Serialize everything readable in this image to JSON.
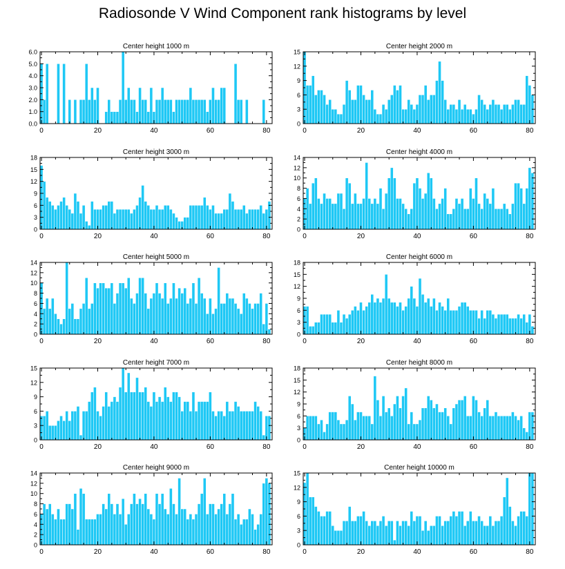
{
  "title": "Radiosonde V Wind Component rank histograms by level",
  "style": {
    "bar_color": "#1ec8f5",
    "bar_edge": "#ffffff",
    "axis_color": "#000000",
    "background": "#ffffff"
  },
  "chart_data": [
    {
      "type": "bar",
      "title": "Center height 1000 m",
      "xlim": [
        -0.5,
        82
      ],
      "ylim": [
        0,
        6
      ],
      "xticks": [
        0,
        20,
        40,
        60,
        80
      ],
      "xtick_labels": [
        "0",
        "20",
        "40",
        "60",
        "80"
      ],
      "yticks": [
        0,
        1,
        2,
        3,
        4,
        5,
        6
      ],
      "ytick_labels": [
        "0.0",
        "1.0",
        "2.0",
        "3.0",
        "4.0",
        "5.0",
        "6.0"
      ],
      "values": [
        5,
        2,
        5,
        0,
        0,
        0,
        5,
        0,
        5,
        0,
        2,
        0,
        2,
        0,
        2,
        2,
        5,
        2,
        3,
        2,
        3,
        0,
        0,
        1,
        2,
        1,
        1,
        1,
        2,
        6,
        2,
        3,
        2,
        2,
        1,
        3,
        2,
        2,
        1,
        3,
        1,
        2,
        2,
        3,
        2,
        2,
        2,
        1,
        2,
        2,
        2,
        2,
        2,
        3,
        2,
        2,
        2,
        2,
        2,
        1,
        2,
        3,
        2,
        2,
        3,
        3,
        0,
        0,
        0,
        5,
        2,
        2,
        0,
        2,
        0,
        0,
        0,
        0,
        0,
        2,
        0,
        0
      ]
    },
    {
      "type": "bar",
      "title": "Center height 2000 m",
      "xlim": [
        -0.5,
        82
      ],
      "ylim": [
        0,
        15
      ],
      "xticks": [
        0,
        20,
        40,
        60,
        80
      ],
      "xtick_labels": [
        "0",
        "20",
        "40",
        "60",
        "80"
      ],
      "yticks": [
        0,
        3,
        6,
        9,
        12,
        15
      ],
      "ytick_labels": [
        "0",
        "3",
        "6",
        "9",
        "12",
        "15"
      ],
      "values": [
        15,
        8,
        8,
        10,
        6,
        7,
        7,
        6,
        4,
        5,
        3,
        3,
        2,
        2,
        4,
        9,
        7,
        5,
        5,
        8,
        8,
        6,
        5,
        5,
        7,
        3,
        2,
        2,
        4,
        3,
        5,
        6,
        8,
        7,
        8,
        3,
        3,
        5,
        4,
        3,
        4,
        6,
        6,
        8,
        5,
        6,
        6,
        9,
        13,
        9,
        5,
        3,
        4,
        4,
        3,
        5,
        3,
        4,
        3,
        3,
        2,
        3,
        6,
        5,
        4,
        3,
        4,
        5,
        4,
        4,
        3,
        4,
        4,
        3,
        4,
        5,
        5,
        4,
        4,
        10,
        8,
        6
      ]
    },
    {
      "type": "bar",
      "title": "Center height 3000 m",
      "xlim": [
        -0.5,
        82
      ],
      "ylim": [
        0,
        18
      ],
      "xticks": [
        0,
        20,
        40,
        60,
        80
      ],
      "xtick_labels": [
        "0",
        "20",
        "40",
        "60",
        "80"
      ],
      "yticks": [
        0,
        3,
        6,
        9,
        12,
        15,
        18
      ],
      "ytick_labels": [
        "0",
        "3",
        "6",
        "9",
        "12",
        "15",
        "18"
      ],
      "values": [
        16,
        12,
        8,
        7,
        6,
        5,
        6,
        7,
        8,
        6,
        5,
        4,
        9,
        7,
        4,
        6,
        2,
        1,
        7,
        5,
        5,
        5,
        6,
        6,
        7,
        7,
        4,
        5,
        5,
        5,
        5,
        5,
        4,
        5,
        6,
        8,
        11,
        7,
        6,
        5,
        5,
        6,
        5,
        5,
        6,
        6,
        5,
        4,
        3,
        2,
        2,
        3,
        3,
        6,
        6,
        6,
        6,
        6,
        8,
        6,
        5,
        6,
        4,
        4,
        4,
        5,
        5,
        9,
        7,
        5,
        5,
        5,
        6,
        4,
        5,
        5,
        5,
        5,
        6,
        4,
        5,
        7
      ]
    },
    {
      "type": "bar",
      "title": "Center height 4000 m",
      "xlim": [
        -0.5,
        82
      ],
      "ylim": [
        0,
        14
      ],
      "xticks": [
        0,
        20,
        40,
        60,
        80
      ],
      "xtick_labels": [
        "0",
        "20",
        "40",
        "60",
        "80"
      ],
      "yticks": [
        0,
        2,
        4,
        6,
        8,
        10,
        12,
        14
      ],
      "ytick_labels": [
        "0",
        "2",
        "4",
        "6",
        "8",
        "10",
        "12",
        "14"
      ],
      "values": [
        6,
        8,
        5,
        9,
        10,
        6,
        5,
        7,
        6,
        6,
        5,
        5,
        7,
        7,
        4,
        10,
        9,
        5,
        7,
        5,
        5,
        6,
        13,
        6,
        5,
        6,
        5,
        8,
        4,
        7,
        10,
        12,
        10,
        6,
        6,
        5,
        4,
        3,
        4,
        9,
        10,
        8,
        6,
        7,
        11,
        10,
        6,
        4,
        5,
        6,
        8,
        3,
        3,
        4,
        6,
        5,
        6,
        4,
        4,
        8,
        6,
        10,
        5,
        4,
        7,
        6,
        5,
        8,
        4,
        4,
        4,
        5,
        4,
        3,
        5,
        9,
        9,
        8,
        5,
        8,
        12,
        11
      ]
    },
    {
      "type": "bar",
      "title": "Center height 5000 m",
      "xlim": [
        -0.5,
        82
      ],
      "ylim": [
        0,
        14
      ],
      "xticks": [
        0,
        20,
        40,
        60,
        80
      ],
      "xtick_labels": [
        "0",
        "20",
        "40",
        "60",
        "80"
      ],
      "yticks": [
        0,
        2,
        4,
        6,
        8,
        10,
        12,
        14
      ],
      "ytick_labels": [
        "0",
        "2",
        "4",
        "6",
        "8",
        "10",
        "12",
        "14"
      ],
      "values": [
        10,
        5,
        7,
        5,
        7,
        4,
        3,
        2,
        3,
        14,
        5,
        6,
        3,
        3,
        5,
        6,
        11,
        5,
        6,
        10,
        9,
        10,
        10,
        9,
        9,
        10,
        6,
        8,
        10,
        10,
        9,
        11,
        7,
        6,
        8,
        11,
        11,
        8,
        5,
        7,
        8,
        10,
        8,
        7,
        10,
        6,
        7,
        10,
        7,
        9,
        8,
        9,
        6,
        7,
        10,
        6,
        11,
        8,
        7,
        4,
        7,
        4,
        5,
        13,
        6,
        6,
        8,
        7,
        7,
        6,
        5,
        4,
        8,
        7,
        6,
        5,
        6,
        6,
        8,
        2,
        6,
        1
      ]
    },
    {
      "type": "bar",
      "title": "Center height 6000 m",
      "xlim": [
        -0.5,
        82
      ],
      "ylim": [
        0,
        18
      ],
      "xticks": [
        0,
        20,
        40,
        60,
        80
      ],
      "xtick_labels": [
        "0",
        "20",
        "40",
        "60",
        "80"
      ],
      "yticks": [
        0,
        3,
        6,
        9,
        12,
        15,
        18
      ],
      "ytick_labels": [
        "0",
        "3",
        "6",
        "9",
        "12",
        "15",
        "18"
      ],
      "values": [
        7,
        7,
        2,
        2,
        3,
        3,
        5,
        5,
        5,
        5,
        3,
        3,
        6,
        3,
        5,
        4,
        5,
        6,
        7,
        6,
        8,
        6,
        7,
        8,
        10,
        8,
        9,
        8,
        9,
        15,
        9,
        8,
        8,
        7,
        8,
        6,
        7,
        9,
        12,
        9,
        7,
        14,
        10,
        8,
        9,
        7,
        9,
        6,
        8,
        7,
        6,
        9,
        6,
        6,
        6,
        7,
        8,
        8,
        7,
        6,
        6,
        6,
        4,
        6,
        4,
        6,
        6,
        5,
        4,
        5,
        5,
        5,
        5,
        4,
        4,
        4,
        5,
        4,
        5,
        3,
        5,
        2
      ]
    },
    {
      "type": "bar",
      "title": "Center height 7000 m",
      "xlim": [
        -0.5,
        82
      ],
      "ylim": [
        0,
        15
      ],
      "xticks": [
        0,
        20,
        40,
        60,
        80
      ],
      "xtick_labels": [
        "0",
        "20",
        "40",
        "60",
        "80"
      ],
      "yticks": [
        0,
        3,
        6,
        9,
        12,
        15
      ],
      "ytick_labels": [
        "0",
        "3",
        "6",
        "9",
        "12",
        "15"
      ],
      "values": [
        5,
        5,
        6,
        3,
        3,
        3,
        4,
        5,
        4,
        6,
        4,
        6,
        6,
        7,
        1,
        6,
        6,
        8,
        10,
        11,
        6,
        5,
        7,
        10,
        7,
        8,
        9,
        8,
        11,
        15,
        10,
        14,
        10,
        10,
        13,
        10,
        10,
        11,
        8,
        7,
        10,
        8,
        9,
        8,
        11,
        9,
        8,
        10,
        10,
        9,
        6,
        8,
        8,
        6,
        10,
        6,
        8,
        8,
        8,
        8,
        10,
        6,
        5,
        6,
        6,
        5,
        8,
        6,
        6,
        8,
        7,
        6,
        6,
        6,
        6,
        6,
        8,
        7,
        6,
        1,
        5,
        5
      ]
    },
    {
      "type": "bar",
      "title": "Center height 8000 m",
      "xlim": [
        -0.5,
        82
      ],
      "ylim": [
        0,
        18
      ],
      "xticks": [
        0,
        20,
        40,
        60,
        80
      ],
      "xtick_labels": [
        "0",
        "20",
        "40",
        "60",
        "80"
      ],
      "yticks": [
        0,
        3,
        6,
        9,
        12,
        15,
        18
      ],
      "ytick_labels": [
        "0",
        "3",
        "6",
        "9",
        "12",
        "15",
        "18"
      ],
      "values": [
        3,
        6,
        6,
        6,
        6,
        4,
        5,
        2,
        4,
        7,
        7,
        7,
        5,
        4,
        4,
        5,
        11,
        9,
        5,
        7,
        7,
        6,
        6,
        6,
        4,
        16,
        10,
        6,
        11,
        7,
        8,
        6,
        9,
        11,
        8,
        11,
        13,
        4,
        7,
        4,
        4,
        5,
        8,
        8,
        11,
        10,
        8,
        9,
        7,
        7,
        8,
        6,
        4,
        8,
        9,
        10,
        10,
        11,
        6,
        6,
        11,
        10,
        7,
        6,
        8,
        10,
        6,
        6,
        7,
        6,
        6,
        6,
        6,
        6,
        7,
        6,
        5,
        6,
        3,
        2,
        7,
        7
      ]
    },
    {
      "type": "bar",
      "title": "Center height 9000 m",
      "xlim": [
        -0.5,
        82
      ],
      "ylim": [
        0,
        14
      ],
      "xticks": [
        0,
        20,
        40,
        60,
        80
      ],
      "xtick_labels": [
        "0",
        "20",
        "40",
        "60",
        "80"
      ],
      "yticks": [
        0,
        2,
        4,
        6,
        8,
        10,
        12,
        14
      ],
      "ytick_labels": [
        "0",
        "2",
        "4",
        "6",
        "8",
        "10",
        "12",
        "14"
      ],
      "values": [
        6,
        8,
        7,
        8,
        6,
        5,
        7,
        5,
        5,
        8,
        8,
        7,
        10,
        3,
        11,
        10,
        5,
        5,
        5,
        5,
        6,
        6,
        8,
        7,
        10,
        8,
        6,
        8,
        6,
        9,
        4,
        6,
        8,
        10,
        8,
        9,
        8,
        10,
        7,
        6,
        5,
        10,
        8,
        10,
        7,
        6,
        11,
        8,
        6,
        13,
        7,
        7,
        5,
        6,
        5,
        6,
        8,
        10,
        13,
        6,
        8,
        8,
        6,
        7,
        8,
        10,
        6,
        8,
        10,
        5,
        6,
        4,
        5,
        5,
        7,
        6,
        3,
        4,
        6,
        12,
        13,
        12
      ]
    },
    {
      "type": "bar",
      "title": "Center height 10000 m",
      "xlim": [
        -0.5,
        82
      ],
      "ylim": [
        0,
        15
      ],
      "xticks": [
        0,
        20,
        40,
        60,
        80
      ],
      "xtick_labels": [
        "0",
        "20",
        "40",
        "60",
        "80"
      ],
      "yticks": [
        0,
        3,
        6,
        9,
        12,
        15
      ],
      "ytick_labels": [
        "0",
        "3",
        "6",
        "9",
        "12",
        "15"
      ],
      "values": [
        13,
        15,
        10,
        10,
        8,
        7,
        6,
        6,
        7,
        7,
        4,
        3,
        3,
        3,
        5,
        5,
        8,
        5,
        5,
        6,
        6,
        7,
        5,
        4,
        5,
        5,
        4,
        5,
        6,
        4,
        5,
        5,
        1,
        5,
        4,
        5,
        5,
        4,
        7,
        5,
        6,
        6,
        3,
        5,
        3,
        4,
        4,
        6,
        6,
        4,
        5,
        5,
        6,
        7,
        6,
        7,
        7,
        4,
        5,
        7,
        5,
        5,
        6,
        5,
        4,
        4,
        6,
        4,
        5,
        5,
        6,
        10,
        14,
        8,
        5,
        4,
        6,
        7,
        7,
        6,
        15,
        15
      ]
    }
  ]
}
